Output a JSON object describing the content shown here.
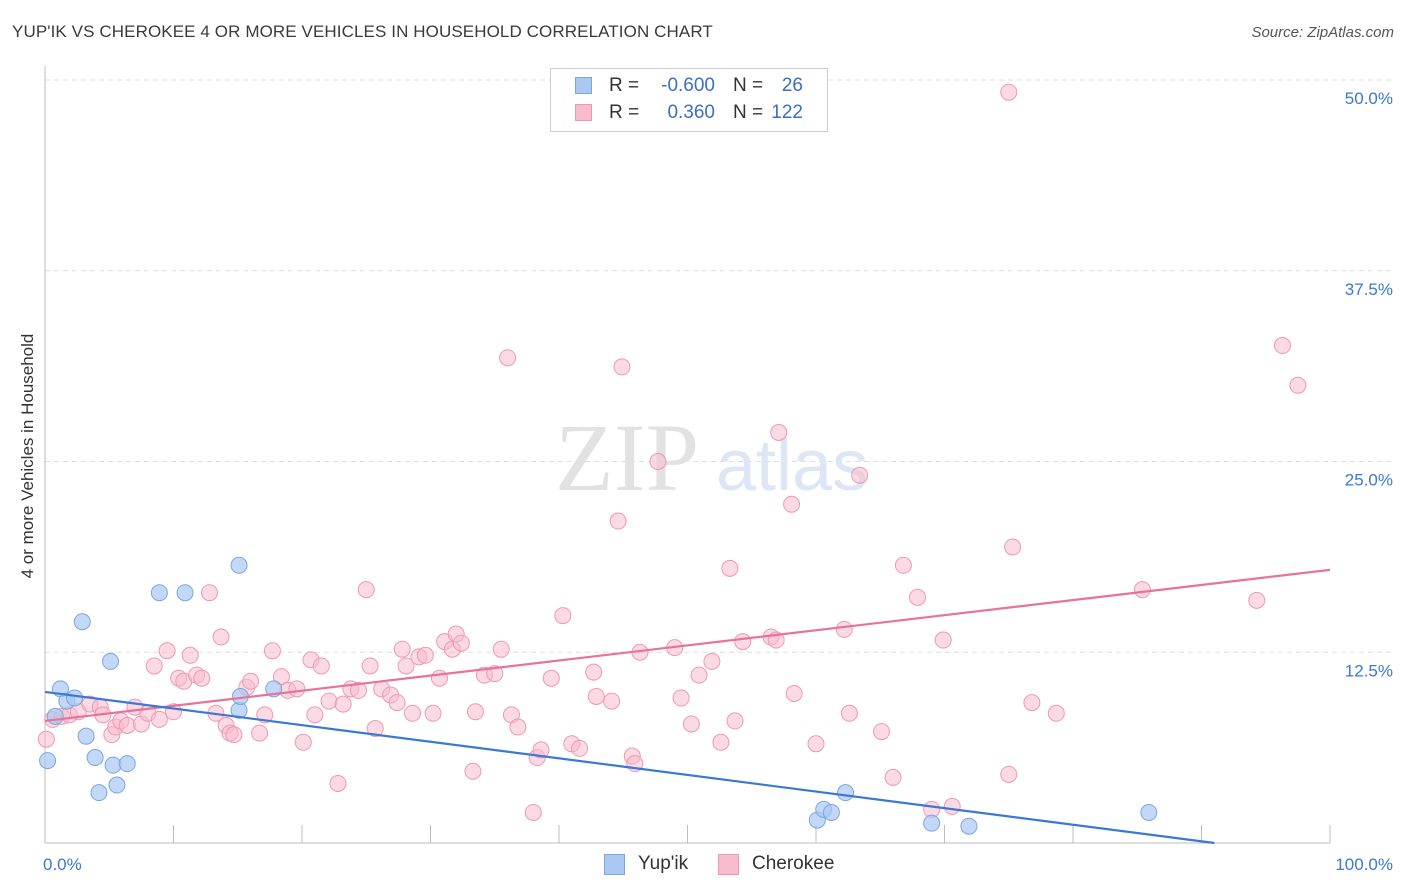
{
  "header": {
    "title": "YUP'IK VS CHEROKEE 4 OR MORE VEHICLES IN HOUSEHOLD CORRELATION CHART",
    "source": "Source: ZipAtlas.com"
  },
  "legend": {
    "yupik": {
      "r_label": "R =",
      "r_value": "-0.600",
      "n_label": "N =",
      "n_value": "26"
    },
    "cherokee": {
      "r_label": "R =",
      "r_value": "0.360",
      "n_label": "N =",
      "n_value": "122"
    }
  },
  "bottom_legend": {
    "yupik": "Yup'ik",
    "cherokee": "Cherokee"
  },
  "colors": {
    "yupik_fill": "#aac8f2",
    "yupik_stroke": "#7aa6e0",
    "yupik_line": "#3a78d4",
    "cherokee_fill": "#f7bccd",
    "cherokee_stroke": "#ee98b4",
    "cherokee_line": "#e8729a",
    "tick_label": "#3a78d4",
    "grid": "#dedede"
  },
  "chart_data": {
    "type": "scatter",
    "title": "YUP'IK VS CHEROKEE 4 OR MORE VEHICLES IN HOUSEHOLD CORRELATION CHART",
    "xlabel": "",
    "ylabel": "4 or more Vehicles in Household",
    "xlim": [
      0,
      100
    ],
    "ylim": [
      0,
      50
    ],
    "x_tick_labels": [
      "0.0%",
      "100.0%"
    ],
    "y_ticks": [
      12.5,
      25.0,
      37.5,
      50.0
    ],
    "y_tick_labels": [
      "12.5%",
      "25.0%",
      "37.5%",
      "50.0%"
    ],
    "watermark": "ZIPatlas",
    "series": [
      {
        "name": "Yup'ik",
        "trend": {
          "x": [
            0,
            91
          ],
          "y": [
            9.9,
            0
          ]
        },
        "points": [
          [
            0.2,
            5.4
          ],
          [
            0.8,
            8.3
          ],
          [
            1.2,
            10.1
          ],
          [
            1.7,
            9.3
          ],
          [
            2.3,
            9.5
          ],
          [
            2.9,
            14.5
          ],
          [
            3.2,
            7.0
          ],
          [
            3.9,
            5.6
          ],
          [
            4.2,
            3.3
          ],
          [
            5.1,
            11.9
          ],
          [
            5.3,
            5.1
          ],
          [
            5.6,
            3.8
          ],
          [
            6.4,
            5.2
          ],
          [
            8.9,
            16.4
          ],
          [
            10.9,
            16.4
          ],
          [
            15.1,
            8.7
          ],
          [
            15.2,
            9.6
          ],
          [
            15.1,
            18.2
          ],
          [
            17.8,
            10.1
          ],
          [
            62.3,
            3.3
          ],
          [
            60.1,
            1.5
          ],
          [
            60.6,
            2.2
          ],
          [
            61.2,
            2.0
          ],
          [
            69.0,
            1.3
          ],
          [
            71.9,
            1.1
          ],
          [
            85.9,
            2.0
          ]
        ]
      },
      {
        "name": "Cherokee",
        "trend": {
          "x": [
            0,
            100
          ],
          "y": [
            8.0,
            17.9
          ]
        },
        "points": [
          [
            0.1,
            6.8
          ],
          [
            0.6,
            8.1
          ],
          [
            1.3,
            8.3
          ],
          [
            1.9,
            8.4
          ],
          [
            2.6,
            8.6
          ],
          [
            3.5,
            9.1
          ],
          [
            4.3,
            8.9
          ],
          [
            4.5,
            8.4
          ],
          [
            5.2,
            7.1
          ],
          [
            5.5,
            7.6
          ],
          [
            5.9,
            8.0
          ],
          [
            6.4,
            7.7
          ],
          [
            7.0,
            8.9
          ],
          [
            7.5,
            7.8
          ],
          [
            8.0,
            8.5
          ],
          [
            8.5,
            11.6
          ],
          [
            8.9,
            8.1
          ],
          [
            9.5,
            12.6
          ],
          [
            10.0,
            8.6
          ],
          [
            10.4,
            10.8
          ],
          [
            10.8,
            10.6
          ],
          [
            11.3,
            12.3
          ],
          [
            11.8,
            11.0
          ],
          [
            12.2,
            10.8
          ],
          [
            12.8,
            16.4
          ],
          [
            13.3,
            8.5
          ],
          [
            13.7,
            13.5
          ],
          [
            14.1,
            7.7
          ],
          [
            14.4,
            7.2
          ],
          [
            14.7,
            7.1
          ],
          [
            15.7,
            10.2
          ],
          [
            16.0,
            10.6
          ],
          [
            16.7,
            7.2
          ],
          [
            17.1,
            8.4
          ],
          [
            17.7,
            12.6
          ],
          [
            18.4,
            10.9
          ],
          [
            18.9,
            10.0
          ],
          [
            19.6,
            10.1
          ],
          [
            20.1,
            6.6
          ],
          [
            20.7,
            12.0
          ],
          [
            21.0,
            8.4
          ],
          [
            21.5,
            11.6
          ],
          [
            22.1,
            9.3
          ],
          [
            22.8,
            3.9
          ],
          [
            23.2,
            9.1
          ],
          [
            23.8,
            10.1
          ],
          [
            24.4,
            10.0
          ],
          [
            25.0,
            16.6
          ],
          [
            25.3,
            11.6
          ],
          [
            25.7,
            7.5
          ],
          [
            26.2,
            10.1
          ],
          [
            26.9,
            9.7
          ],
          [
            27.4,
            9.2
          ],
          [
            27.8,
            12.7
          ],
          [
            28.1,
            11.6
          ],
          [
            28.6,
            8.5
          ],
          [
            29.1,
            12.2
          ],
          [
            29.6,
            12.3
          ],
          [
            30.2,
            8.5
          ],
          [
            30.7,
            10.8
          ],
          [
            31.1,
            13.2
          ],
          [
            31.7,
            12.7
          ],
          [
            32.0,
            13.7
          ],
          [
            32.4,
            13.1
          ],
          [
            33.3,
            4.7
          ],
          [
            33.5,
            8.6
          ],
          [
            34.2,
            11.0
          ],
          [
            35.0,
            11.1
          ],
          [
            35.5,
            12.7
          ],
          [
            36.0,
            31.8
          ],
          [
            36.3,
            8.4
          ],
          [
            36.8,
            7.6
          ],
          [
            38.0,
            2.0
          ],
          [
            38.3,
            5.6
          ],
          [
            38.6,
            6.1
          ],
          [
            39.4,
            10.8
          ],
          [
            40.3,
            14.9
          ],
          [
            41.0,
            6.5
          ],
          [
            41.6,
            6.2
          ],
          [
            42.7,
            11.2
          ],
          [
            42.9,
            9.6
          ],
          [
            44.1,
            9.3
          ],
          [
            44.6,
            21.1
          ],
          [
            44.9,
            31.2
          ],
          [
            45.7,
            5.7
          ],
          [
            45.9,
            5.2
          ],
          [
            46.3,
            12.5
          ],
          [
            47.7,
            25.0
          ],
          [
            49.0,
            12.8
          ],
          [
            49.5,
            9.5
          ],
          [
            50.3,
            7.8
          ],
          [
            50.9,
            11.0
          ],
          [
            51.9,
            11.9
          ],
          [
            52.6,
            6.6
          ],
          [
            53.3,
            18.0
          ],
          [
            53.7,
            8.0
          ],
          [
            54.3,
            13.2
          ],
          [
            56.5,
            13.5
          ],
          [
            56.9,
            13.3
          ],
          [
            57.1,
            26.9
          ],
          [
            58.1,
            22.2
          ],
          [
            58.3,
            9.8
          ],
          [
            60.0,
            6.5
          ],
          [
            62.2,
            14.0
          ],
          [
            62.6,
            8.5
          ],
          [
            63.4,
            24.1
          ],
          [
            65.1,
            7.3
          ],
          [
            66.0,
            4.3
          ],
          [
            66.8,
            18.2
          ],
          [
            67.9,
            16.1
          ],
          [
            69.0,
            2.2
          ],
          [
            69.9,
            13.3
          ],
          [
            70.6,
            2.4
          ],
          [
            75.0,
            4.5
          ],
          [
            75.3,
            19.4
          ],
          [
            76.8,
            9.2
          ],
          [
            78.7,
            8.5
          ],
          [
            75.0,
            49.2
          ],
          [
            85.4,
            16.6
          ],
          [
            94.3,
            15.9
          ],
          [
            96.3,
            32.6
          ],
          [
            97.5,
            30.0
          ]
        ]
      }
    ]
  }
}
